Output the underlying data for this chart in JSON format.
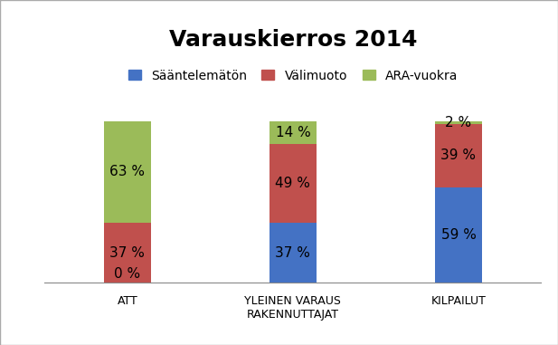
{
  "title": "Varauskierros 2014",
  "categories": [
    "ATT",
    "YLEINEN VARAUS\nRAKENNUTTAJAT",
    "KILPAILUT"
  ],
  "series": {
    "Sääntelemätön": [
      0,
      37,
      59
    ],
    "Välimuoto": [
      37,
      49,
      39
    ],
    "ARA-vuokra": [
      63,
      14,
      2
    ]
  },
  "colors": {
    "Sääntelemätön": "#4472C4",
    "Välimuoto": "#C0504D",
    "ARA-vuokra": "#9BBB59"
  },
  "pct_labels": [
    [
      "0 %",
      "37 %",
      "63 %"
    ],
    [
      "37 %",
      "49 %",
      "14 %"
    ],
    [
      "59 %",
      "39 %",
      "2 %"
    ]
  ],
  "ylim": [
    0,
    115
  ],
  "background_color": "#FFFFFF",
  "title_fontsize": 18,
  "label_fontsize": 11,
  "legend_fontsize": 10,
  "tick_fontsize": 9,
  "bar_width": 0.28
}
